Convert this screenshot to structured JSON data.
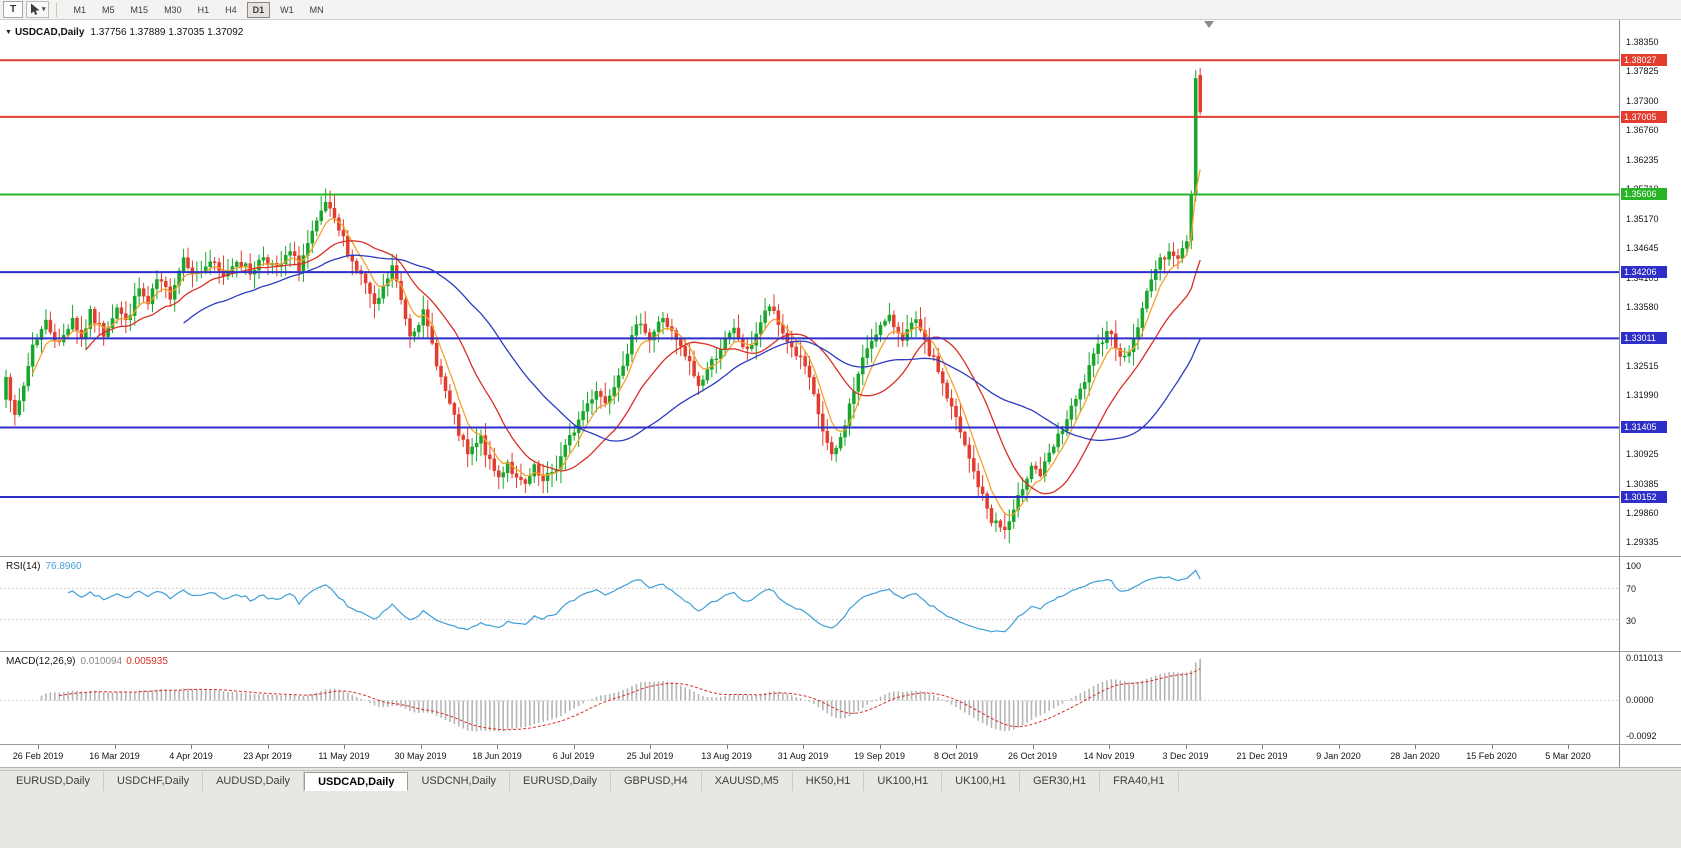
{
  "toolbar": {
    "text_tool_label": "T",
    "cursor_tool": "cursor-pointer-with-dropdown",
    "timeframes": [
      "M1",
      "M5",
      "M15",
      "M30",
      "H1",
      "H4",
      "D1",
      "W1",
      "MN"
    ],
    "active_timeframe": "D1"
  },
  "chart_data": {
    "type": "candlestick",
    "symbol": "USDCAD",
    "timeframe": "Daily",
    "title": "USDCAD,Daily",
    "ohlc_text": "1.37756 1.37889 1.37035 1.37092",
    "ohlc": {
      "open": 1.37756,
      "high": 1.37889,
      "low": 1.37035,
      "close": 1.37092
    },
    "price_axis": {
      "max": 1.3868,
      "min": 1.2916,
      "ticks": [
        1.3835,
        1.37825,
        1.373,
        1.3676,
        1.36235,
        1.3571,
        1.3517,
        1.34645,
        1.34105,
        1.3358,
        1.33055,
        1.32515,
        1.3199,
        1.3145,
        1.30925,
        1.30385,
        1.2986,
        1.29335
      ]
    },
    "hlines": [
      {
        "price": 1.38027,
        "label": "1.38027",
        "color": "#e23d2e"
      },
      {
        "price": 1.37005,
        "label": "1.37005",
        "color": "#e23d2e"
      },
      {
        "price": 1.35606,
        "label": "1.35606",
        "color": "#27b427"
      },
      {
        "price": 1.34206,
        "label": "1.34206",
        "color": "#2e2ec8"
      },
      {
        "price": 1.33011,
        "label": "1.33011",
        "color": "#2e2ec8"
      },
      {
        "price": 1.31405,
        "label": "1.31405",
        "color": "#2e2ec8"
      },
      {
        "price": 1.30152,
        "label": "1.30152",
        "color": "#2e2ec8"
      }
    ],
    "bars": 270,
    "data_fraction": 0.745,
    "waypoints": [
      [
        0,
        1.324
      ],
      [
        2,
        1.3155
      ],
      [
        4,
        1.3215
      ],
      [
        6,
        1.329
      ],
      [
        9,
        1.333
      ],
      [
        12,
        1.329
      ],
      [
        15,
        1.334
      ],
      [
        17,
        1.33
      ],
      [
        19,
        1.3345
      ],
      [
        22,
        1.331
      ],
      [
        25,
        1.336
      ],
      [
        27,
        1.333
      ],
      [
        30,
        1.339
      ],
      [
        32,
        1.336
      ],
      [
        34,
        1.3405
      ],
      [
        37,
        1.338
      ],
      [
        40,
        1.3448
      ],
      [
        43,
        1.3415
      ],
      [
        46,
        1.344
      ],
      [
        49,
        1.341
      ],
      [
        52,
        1.3445
      ],
      [
        55,
        1.342
      ],
      [
        58,
        1.345
      ],
      [
        61,
        1.3425
      ],
      [
        64,
        1.3455
      ],
      [
        66,
        1.343
      ],
      [
        68,
        1.347
      ],
      [
        70,
        1.3505
      ],
      [
        72,
        1.3545
      ],
      [
        74,
        1.351
      ],
      [
        76,
        1.348
      ],
      [
        78,
        1.344
      ],
      [
        81,
        1.34
      ],
      [
        83,
        1.3355
      ],
      [
        85,
        1.339
      ],
      [
        87,
        1.343
      ],
      [
        89,
        1.337
      ],
      [
        91,
        1.331
      ],
      [
        94,
        1.3345
      ],
      [
        96,
        1.329
      ],
      [
        98,
        1.323
      ],
      [
        100,
        1.318
      ],
      [
        102,
        1.313
      ],
      [
        104,
        1.309
      ],
      [
        107,
        1.312
      ],
      [
        109,
        1.3075
      ],
      [
        111,
        1.305
      ],
      [
        113,
        1.308
      ],
      [
        115,
        1.3045
      ],
      [
        117,
        1.3035
      ],
      [
        119,
        1.3065
      ],
      [
        121,
        1.304
      ],
      [
        124,
        1.307
      ],
      [
        127,
        1.312
      ],
      [
        130,
        1.317
      ],
      [
        133,
        1.321
      ],
      [
        135,
        1.3185
      ],
      [
        138,
        1.324
      ],
      [
        141,
        1.33
      ],
      [
        143,
        1.3335
      ],
      [
        145,
        1.33
      ],
      [
        148,
        1.334
      ],
      [
        151,
        1.3295
      ],
      [
        154,
        1.3255
      ],
      [
        156,
        1.3215
      ],
      [
        158,
        1.3245
      ],
      [
        161,
        1.3285
      ],
      [
        164,
        1.3315
      ],
      [
        167,
        1.3275
      ],
      [
        170,
        1.333
      ],
      [
        172,
        1.336
      ],
      [
        174,
        1.3325
      ],
      [
        177,
        1.3285
      ],
      [
        180,
        1.325
      ],
      [
        182,
        1.3195
      ],
      [
        184,
        1.3135
      ],
      [
        186,
        1.3085
      ],
      [
        188,
        1.312
      ],
      [
        190,
        1.318
      ],
      [
        192,
        1.3235
      ],
      [
        194,
        1.3285
      ],
      [
        196,
        1.3315
      ],
      [
        199,
        1.3335
      ],
      [
        202,
        1.3305
      ],
      [
        205,
        1.333
      ],
      [
        207,
        1.329
      ],
      [
        210,
        1.3245
      ],
      [
        212,
        1.3195
      ],
      [
        214,
        1.3155
      ],
      [
        216,
        1.3105
      ],
      [
        218,
        1.306
      ],
      [
        220,
        1.3015
      ],
      [
        222,
        1.2975
      ],
      [
        225,
        1.2955
      ],
      [
        227,
        1.2985
      ],
      [
        229,
        1.3035
      ],
      [
        231,
        1.3075
      ],
      [
        233,
        1.3055
      ],
      [
        236,
        1.3105
      ],
      [
        239,
        1.3155
      ],
      [
        242,
        1.3205
      ],
      [
        244,
        1.3245
      ],
      [
        246,
        1.3285
      ],
      [
        248,
        1.332
      ],
      [
        250,
        1.329
      ],
      [
        252,
        1.3262
      ],
      [
        254,
        1.33
      ],
      [
        256,
        1.335
      ],
      [
        258,
        1.3415
      ],
      [
        260,
        1.3438
      ],
      [
        262,
        1.3465
      ],
      [
        264,
        1.344
      ],
      [
        266,
        1.348
      ],
      [
        267,
        1.356
      ],
      [
        268,
        1.377
      ],
      [
        269,
        1.3709
      ]
    ],
    "last_candles": [
      [
        1.3478,
        1.3568,
        1.3462,
        1.356
      ],
      [
        1.3562,
        1.3785,
        1.3548,
        1.377
      ],
      [
        1.37756,
        1.37889,
        1.37035,
        1.37092
      ]
    ],
    "moving_averages": [
      {
        "period": 6,
        "type": "ema",
        "color": "#f2a32b"
      },
      {
        "period": 18,
        "type": "sma",
        "color": "#d93025"
      },
      {
        "period": 40,
        "type": "sma",
        "color": "#2b3bc2"
      }
    ],
    "colors": {
      "up": "#17a62a",
      "down": "#e23d2e",
      "background": "#ffffff",
      "axis_text": "#141414"
    },
    "x_axis_dates": [
      "26 Feb 2019",
      "16 Mar 2019",
      "4 Apr 2019",
      "23 Apr 2019",
      "11 May 2019",
      "30 May 2019",
      "18 Jun 2019",
      "6 Jul 2019",
      "25 Jul 2019",
      "13 Aug 2019",
      "31 Aug 2019",
      "19 Sep 2019",
      "8 Oct 2019",
      "26 Oct 2019",
      "14 Nov 2019",
      "3 Dec 2019",
      "21 Dec 2019",
      "9 Jan 2020",
      "28 Jan 2020",
      "15 Feb 2020",
      "5 Mar 2020"
    ],
    "indicators": {
      "rsi": {
        "label": "RSI(14)",
        "value": "76.8960",
        "period": 14,
        "color": "#3f9fd8",
        "levels": [
          {
            "value": 100,
            "label": "100"
          },
          {
            "value": 70,
            "label": "70"
          },
          {
            "value": 30,
            "label": "30"
          }
        ]
      },
      "macd": {
        "label": "MACD(12,26,9)",
        "value_main": "0.010094",
        "value_signal": "0.005935",
        "fast": 12,
        "slow": 26,
        "signal": 9,
        "histogram_color": "#b5b5b5",
        "signal_color": "#d93025",
        "max": 0.011013,
        "min": -0.0092,
        "axis_labels": [
          {
            "value": 0.011013,
            "label": "0.011013"
          },
          {
            "value": 0,
            "label": "0.0000"
          },
          {
            "value": -0.0092,
            "label": "-0.0092"
          }
        ]
      }
    }
  },
  "tabs": {
    "items": [
      {
        "label": "EURUSD,Daily",
        "active": false
      },
      {
        "label": "USDCHF,Daily",
        "active": false
      },
      {
        "label": "AUDUSD,Daily",
        "active": false
      },
      {
        "label": "USDCAD,Daily",
        "active": true
      },
      {
        "label": "USDCNH,Daily",
        "active": false
      },
      {
        "label": "EURUSD,Daily",
        "active": false
      },
      {
        "label": "GBPUSD,H4",
        "active": false
      },
      {
        "label": "XAUUSD,M5",
        "active": false
      },
      {
        "label": "HK50,H1",
        "active": false
      },
      {
        "label": "UK100,H1",
        "active": false
      },
      {
        "label": "UK100,H1",
        "active": false
      },
      {
        "label": "GER30,H1",
        "active": false
      },
      {
        "label": "FRA40,H1",
        "active": false
      }
    ]
  }
}
